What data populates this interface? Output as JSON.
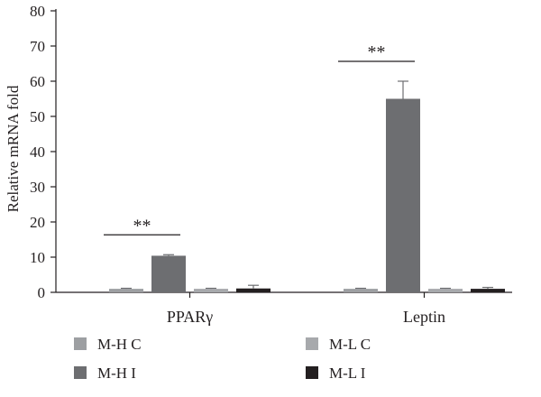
{
  "chart_data": {
    "type": "bar",
    "title": "",
    "xlabel": "",
    "ylabel": "Relative mRNA fold",
    "ylim": [
      0,
      80
    ],
    "yticks": [
      0,
      10,
      20,
      30,
      40,
      50,
      60,
      70,
      80
    ],
    "categories": [
      "PPARγ",
      "Leptin"
    ],
    "series": [
      {
        "name": "M-H C",
        "color": "#9d9fa2",
        "values": [
          1.0,
          1.0
        ],
        "errors": [
          0.15,
          0.15
        ]
      },
      {
        "name": "M-H I",
        "color": "#6d6e71",
        "values": [
          10.4,
          55.0
        ],
        "errors": [
          0.3,
          5.0
        ]
      },
      {
        "name": "M-L C",
        "color": "#a7a9ac",
        "values": [
          1.0,
          1.0
        ],
        "errors": [
          0.15,
          0.15
        ]
      },
      {
        "name": "M-L I",
        "color": "#231f20",
        "values": [
          1.1,
          1.0
        ],
        "errors": [
          0.9,
          0.4
        ]
      }
    ],
    "annotations": [
      {
        "text": "**",
        "category": "PPARγ",
        "from_series": 0,
        "to_series": 1
      },
      {
        "text": "**",
        "category": "Leptin",
        "from_series": 0,
        "to_series": 1
      }
    ],
    "grid": false,
    "legend_position": "bottom"
  }
}
